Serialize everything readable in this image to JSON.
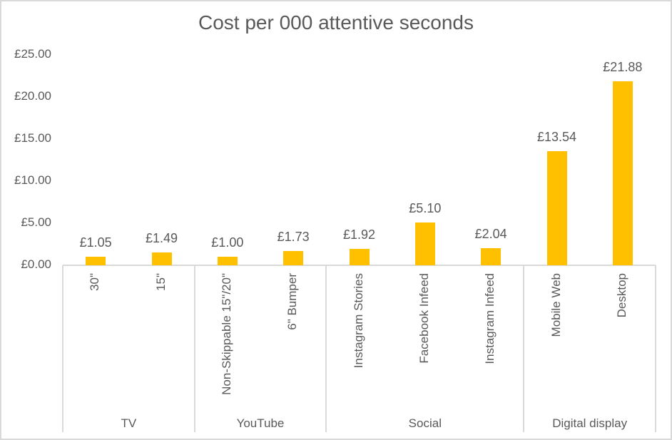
{
  "chart_data": {
    "type": "bar",
    "title": "Cost per 000 attentive seconds",
    "xlabel": "",
    "ylabel": "",
    "ylim": [
      0,
      25
    ],
    "yticks": [
      "£0.00",
      "£5.00",
      "£10.00",
      "£15.00",
      "£20.00",
      "£25.00"
    ],
    "grid": false,
    "legend": null,
    "bar_color": "#FFC000",
    "categories": [
      "30\"",
      "15\"",
      "Non-Skippable 15\"/20\"",
      "6\" Bumper",
      "Instagram Stories",
      "Facebook Infeed",
      "Instagram Infeed",
      "Mobile Web",
      "Desktop"
    ],
    "groups": [
      {
        "name": "TV",
        "categories": [
          "30\"",
          "15\""
        ]
      },
      {
        "name": "YouTube",
        "categories": [
          "Non-Skippable 15\"/20\"",
          "6\" Bumper"
        ]
      },
      {
        "name": "Social",
        "categories": [
          "Instagram Stories",
          "Facebook Infeed",
          "Instagram Infeed"
        ]
      },
      {
        "name": "Digital display",
        "categories": [
          "Mobile Web",
          "Desktop"
        ]
      }
    ],
    "values": [
      1.05,
      1.49,
      1.0,
      1.73,
      1.92,
      5.1,
      2.04,
      13.54,
      21.88
    ],
    "data_labels": [
      "£1.05",
      "£1.49",
      "£1.00",
      "£1.73",
      "£1.92",
      "£5.10",
      "£2.04",
      "£13.54",
      "£21.88"
    ]
  }
}
